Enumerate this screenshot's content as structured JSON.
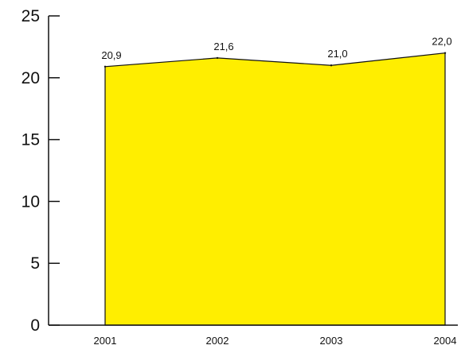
{
  "chart_data": {
    "type": "area",
    "categories": [
      "2001",
      "2002",
      "2003",
      "2004"
    ],
    "values": [
      20.9,
      21.6,
      21.0,
      22.0
    ],
    "data_labels": [
      "20,9",
      "21,6",
      "21,0",
      "22,0"
    ],
    "yticks": [
      0,
      5,
      10,
      15,
      20,
      25
    ],
    "ytick_labels": [
      "0",
      "5",
      "10",
      "15",
      "20",
      "25"
    ],
    "ylim": [
      0,
      25
    ],
    "fill_color": "#ffee00",
    "line_color": "#111111",
    "grid": false,
    "legend": "none"
  }
}
